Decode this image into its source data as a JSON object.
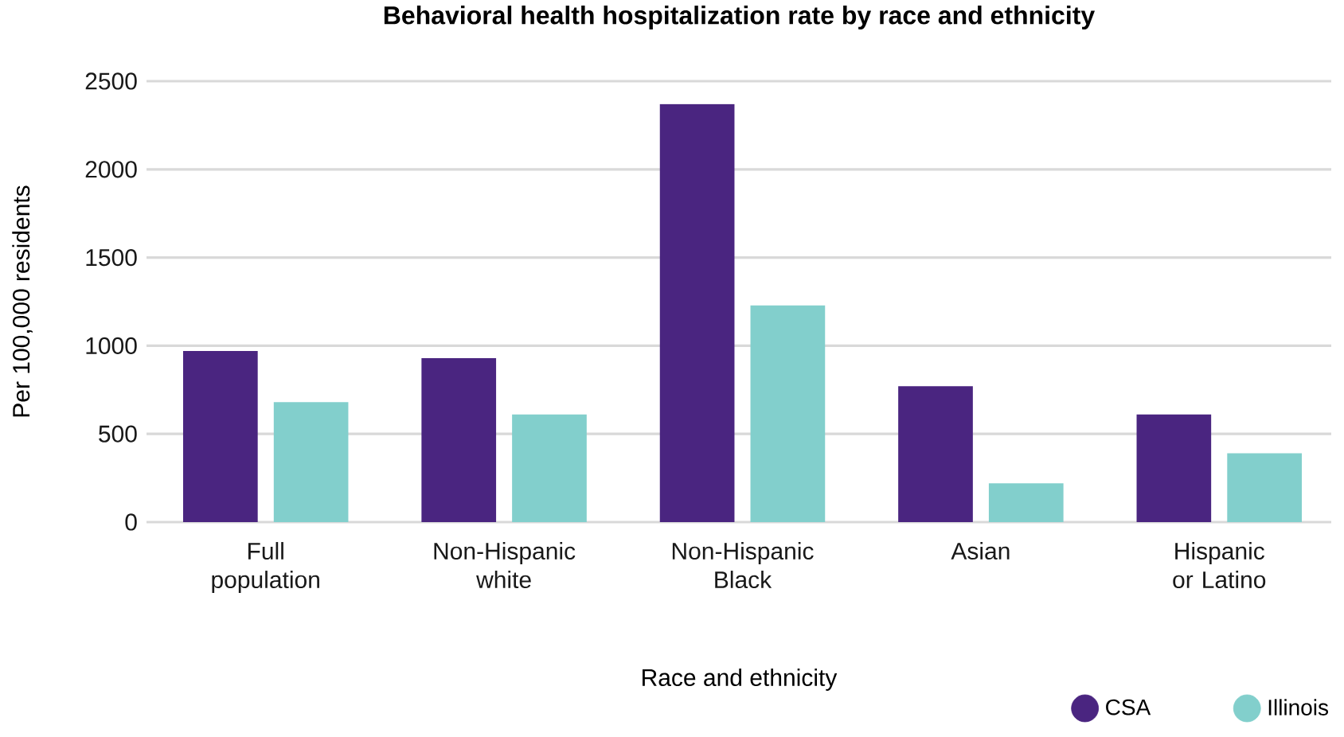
{
  "chart_data": {
    "type": "bar",
    "title": "Behavioral health hospitalization rate by race and ethnicity",
    "xlabel": "Race and ethnicity",
    "ylabel": "Per 100,000 residents",
    "categories": [
      "Full population",
      "Non-Hispanic white",
      "Non-Hispanic Black",
      "Asian",
      "Hispanic or Latino"
    ],
    "series": [
      {
        "name": "CSA",
        "color": "#4a2580",
        "values": [
          970,
          930,
          2370,
          770,
          610
        ]
      },
      {
        "name": "Illinois",
        "color": "#82cfcc",
        "values": [
          680,
          610,
          1230,
          220,
          390
        ]
      }
    ],
    "ylim": [
      0,
      2500
    ],
    "yticks": [
      0,
      500,
      1000,
      1500,
      2000,
      2500
    ],
    "grid": "y",
    "legend": "bottom right"
  }
}
